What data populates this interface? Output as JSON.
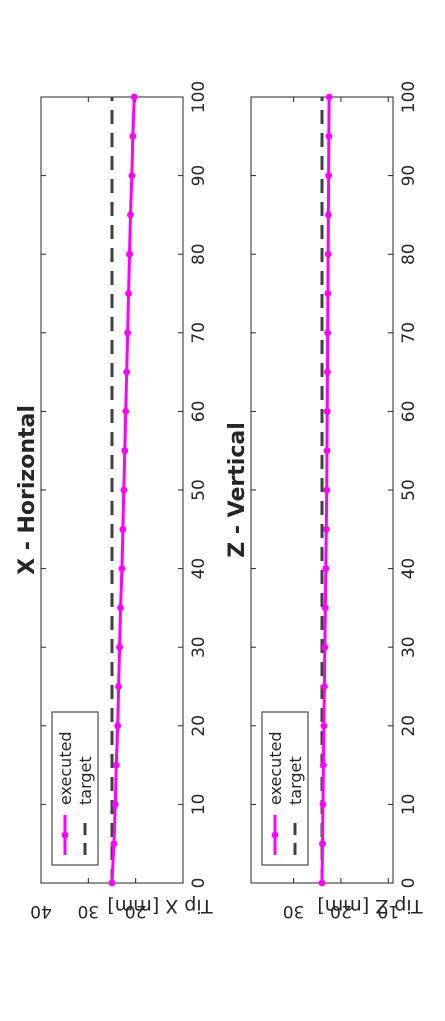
{
  "colors": {
    "executed": "#ff00ff",
    "target": "#404040",
    "axis": "#262626"
  },
  "chart_data": [
    {
      "type": "line",
      "title": "X - Horizontal",
      "xlabel": "",
      "ylabel": "Tip X [mm]",
      "xlim": [
        0,
        100
      ],
      "ylim": [
        10,
        40
      ],
      "xticks": [
        "0",
        "10",
        "20",
        "30",
        "40",
        "50",
        "60",
        "70",
        "80",
        "90",
        "100"
      ],
      "yticks": [
        "20",
        "30",
        "40"
      ],
      "legend": {
        "placement": "bottom-left",
        "entries": [
          "executed",
          "target"
        ]
      },
      "series": [
        {
          "name": "executed",
          "x": [
            0,
            5,
            10,
            15,
            20,
            25,
            30,
            35,
            40,
            45,
            50,
            55,
            60,
            65,
            70,
            75,
            80,
            85,
            90,
            95,
            100
          ],
          "y": [
            25.0,
            24.6,
            24.3,
            24.1,
            23.8,
            23.6,
            23.4,
            23.2,
            22.9,
            22.7,
            22.5,
            22.3,
            22.1,
            21.9,
            21.7,
            21.5,
            21.3,
            21.1,
            20.8,
            20.6,
            20.3
          ]
        },
        {
          "name": "target",
          "x": [
            0,
            100
          ],
          "y": [
            25.0,
            25.0
          ]
        }
      ]
    },
    {
      "type": "line",
      "title": "Z - Vertical",
      "xlabel": "",
      "ylabel": "Tip Z [mm]",
      "xlim": [
        0,
        100
      ],
      "ylim": [
        9,
        39
      ],
      "xticks": [
        "0",
        "10",
        "20",
        "30",
        "40",
        "50",
        "60",
        "70",
        "80",
        "90",
        "100"
      ],
      "yticks": [
        "10",
        "20",
        "30"
      ],
      "legend": {
        "placement": "bottom-left",
        "entries": [
          "executed",
          "target"
        ]
      },
      "series": [
        {
          "name": "executed",
          "x": [
            0,
            5,
            10,
            15,
            20,
            25,
            30,
            35,
            40,
            45,
            50,
            55,
            60,
            65,
            70,
            75,
            80,
            85,
            90,
            95,
            100
          ],
          "y": [
            24.0,
            23.9,
            23.8,
            23.7,
            23.6,
            23.5,
            23.4,
            23.3,
            23.2,
            23.1,
            23.0,
            22.95,
            22.9,
            22.85,
            22.8,
            22.75,
            22.7,
            22.65,
            22.6,
            22.55,
            22.5
          ]
        },
        {
          "name": "target",
          "x": [
            0,
            100
          ],
          "y": [
            24.0,
            24.0
          ]
        }
      ]
    }
  ]
}
